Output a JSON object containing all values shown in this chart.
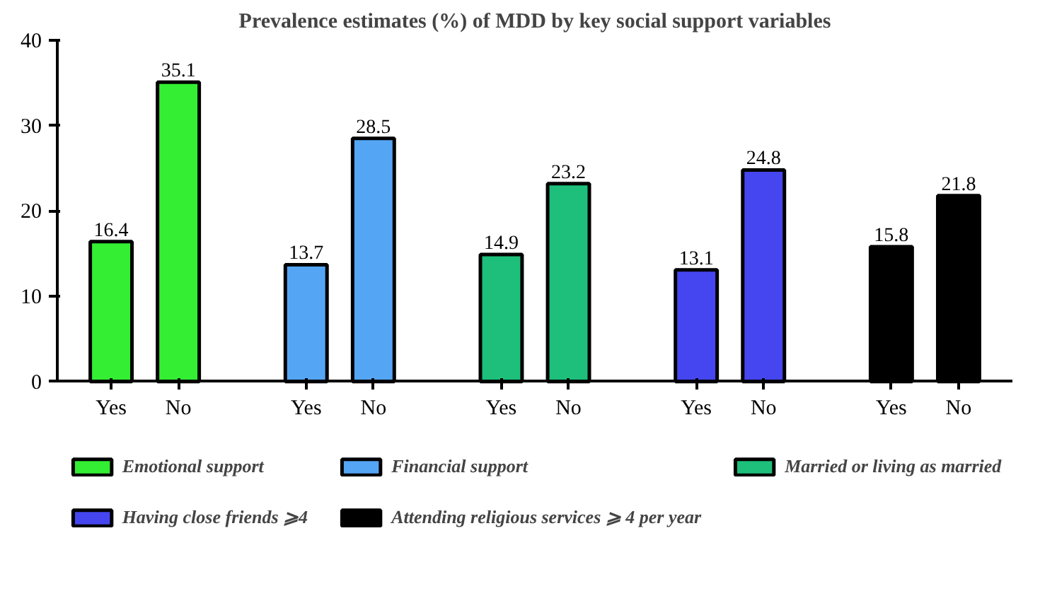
{
  "chart_data": {
    "type": "bar",
    "title": "Prevalence estimates (%) of MDD by key social support variables",
    "categories": [
      "Yes",
      "No",
      "Yes",
      "No",
      "Yes",
      "No",
      "Yes",
      "No",
      "Yes",
      "No"
    ],
    "series": [
      {
        "name": "Emotional support",
        "color": "#33ee33",
        "values": [
          16.4,
          35.1,
          null,
          null,
          null,
          null,
          null,
          null,
          null,
          null
        ]
      },
      {
        "name": "Financial support",
        "color": "#55a5f5",
        "values": [
          null,
          null,
          13.7,
          28.5,
          null,
          null,
          null,
          null,
          null,
          null
        ]
      },
      {
        "name": "Married or living as married",
        "color": "#1dbf7a",
        "values": [
          null,
          null,
          null,
          null,
          14.9,
          23.2,
          null,
          null,
          null,
          null
        ]
      },
      {
        "name": "Having close friends ⩾4",
        "color": "#4646f0",
        "values": [
          null,
          null,
          null,
          null,
          null,
          null,
          13.1,
          24.8,
          null,
          null
        ]
      },
      {
        "name": "Attending religious services ⩾ 4 per year",
        "color": "#000000",
        "values": [
          null,
          null,
          null,
          null,
          null,
          null,
          null,
          null,
          15.8,
          21.8
        ]
      }
    ],
    "ylim": [
      0,
      40
    ],
    "yticks": [
      0,
      10,
      20,
      30,
      40
    ],
    "grid": false,
    "legend": "bottom",
    "data_labels": true
  }
}
